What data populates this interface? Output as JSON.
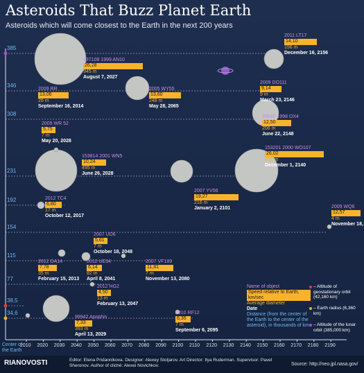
{
  "title": "Asteroids That Buzz Planet Earth",
  "subtitle": "Asteroids which will come closest to the Earth in the next 200 years",
  "distances": [
    "385",
    "346",
    "308",
    "231",
    "192",
    "154",
    "115",
    "77",
    "38,5",
    "34,6"
  ],
  "years": [
    "2010",
    "2020",
    "2030",
    "2040",
    "2050",
    "2060",
    "2070",
    "2080",
    "2090",
    "2100",
    "2110",
    "2120",
    "2130",
    "2140",
    "2150",
    "2160",
    "2170",
    "2180",
    "2190"
  ],
  "asteroids": [
    {
      "name": "2011 LT17",
      "speed": "14,10",
      "diameter": "156 m",
      "date": "December 16, 2156"
    },
    {
      "name": "137108 1999 AN10",
      "speed": "26,28",
      "diameter": "945 m",
      "date": "August 7, 2027"
    },
    {
      "name": "2009 DO111",
      "speed": "9,14",
      "diameter": "9 m",
      "date": "March 23, 2146"
    },
    {
      "name": "2009 RR",
      "speed": "13,06",
      "diameter": "26 m",
      "date": "September 16, 2014"
    },
    {
      "name": "2005 WY55",
      "speed": "13,60",
      "diameter": "248 m",
      "date": "May 28, 2065"
    },
    {
      "name": "85640 1998 OX4",
      "speed": "12,50",
      "diameter": "206 m",
      "date": "June 22, 2148"
    },
    {
      "name": "2009 WR 52",
      "speed": "5,75",
      "diameter": "7 m",
      "date": "May 20, 2028"
    },
    {
      "name": "153201 2000 WO107",
      "speed": "26,02",
      "diameter": "495 m",
      "date": "December 1, 2140"
    },
    {
      "name": "153814 2001 WN5",
      "speed": "10,24",
      "diameter": "495 m",
      "date": "June 26, 2028"
    },
    {
      "name": "2007 YV56",
      "speed": "19,27",
      "diameter": "216 m",
      "date": "January 2, 2101"
    },
    {
      "name": "2012 TC4",
      "speed": "6,80",
      "diameter": "17 m",
      "date": "October 12, 2017"
    },
    {
      "name": "2009 WQ6",
      "speed": "12,57",
      "diameter": "4 m",
      "date": "November 18, 2189"
    },
    {
      "name": "2007 UD6",
      "speed": "5,61",
      "diameter": "7 m",
      "date": "October 18, 2048"
    },
    {
      "name": "2012 DA14",
      "speed": "7,78",
      "diameter": "35 m",
      "date": "February 15, 2013"
    },
    {
      "name": "2012 UE34",
      "speed": "6,14",
      "diameter": "82 m",
      "date": "April 8, 2041"
    },
    {
      "name": "2007 VF189",
      "speed": "11,81",
      "diameter": "7 m",
      "date": "November 13, 2080"
    },
    {
      "name": "2012 HG2",
      "speed": "4,50",
      "diameter": "13 m",
      "date": "February 13, 2047"
    },
    {
      "name": "99942 Apophis",
      "speed": "7,33",
      "diameter": "393 m",
      "date": "April 13, 2029"
    },
    {
      "name": "2010 RF12",
      "speed": "6,35",
      "diameter": "7 m",
      "date": "September 6, 2095"
    }
  ],
  "legend": {
    "name": "Name of object",
    "speed": "Speed relative to Earth, km/sec",
    "diameter": "Average diameter",
    "date": "Date",
    "distance": "Distance (from the center of the Earth to the center of the asteroid), in thousands of km",
    "geo": "– Altitude of geostationary orbit (42,160 km)",
    "earth": "– Earth radius (6,360 km)",
    "lunar": "– Altitude of the lunar orbit (385,000 km)"
  },
  "center_label": "Center of the Earth",
  "logo": "RIANOVOSTI",
  "credits": "Editor: Elena Pridannikova. Designer: Alexey Stoljarov. Art Director: Ilya Ruderman. Supervisor: Pavel Sheronov. Author of cliché: Alexei Novichkov.",
  "source": "Source: http://neo.jpl.nasa.gov/",
  "colors": {
    "background": "#1c2b4a",
    "speed": "#f7b32b",
    "name": "#c98ee8",
    "distance": "#6fb8f0"
  }
}
